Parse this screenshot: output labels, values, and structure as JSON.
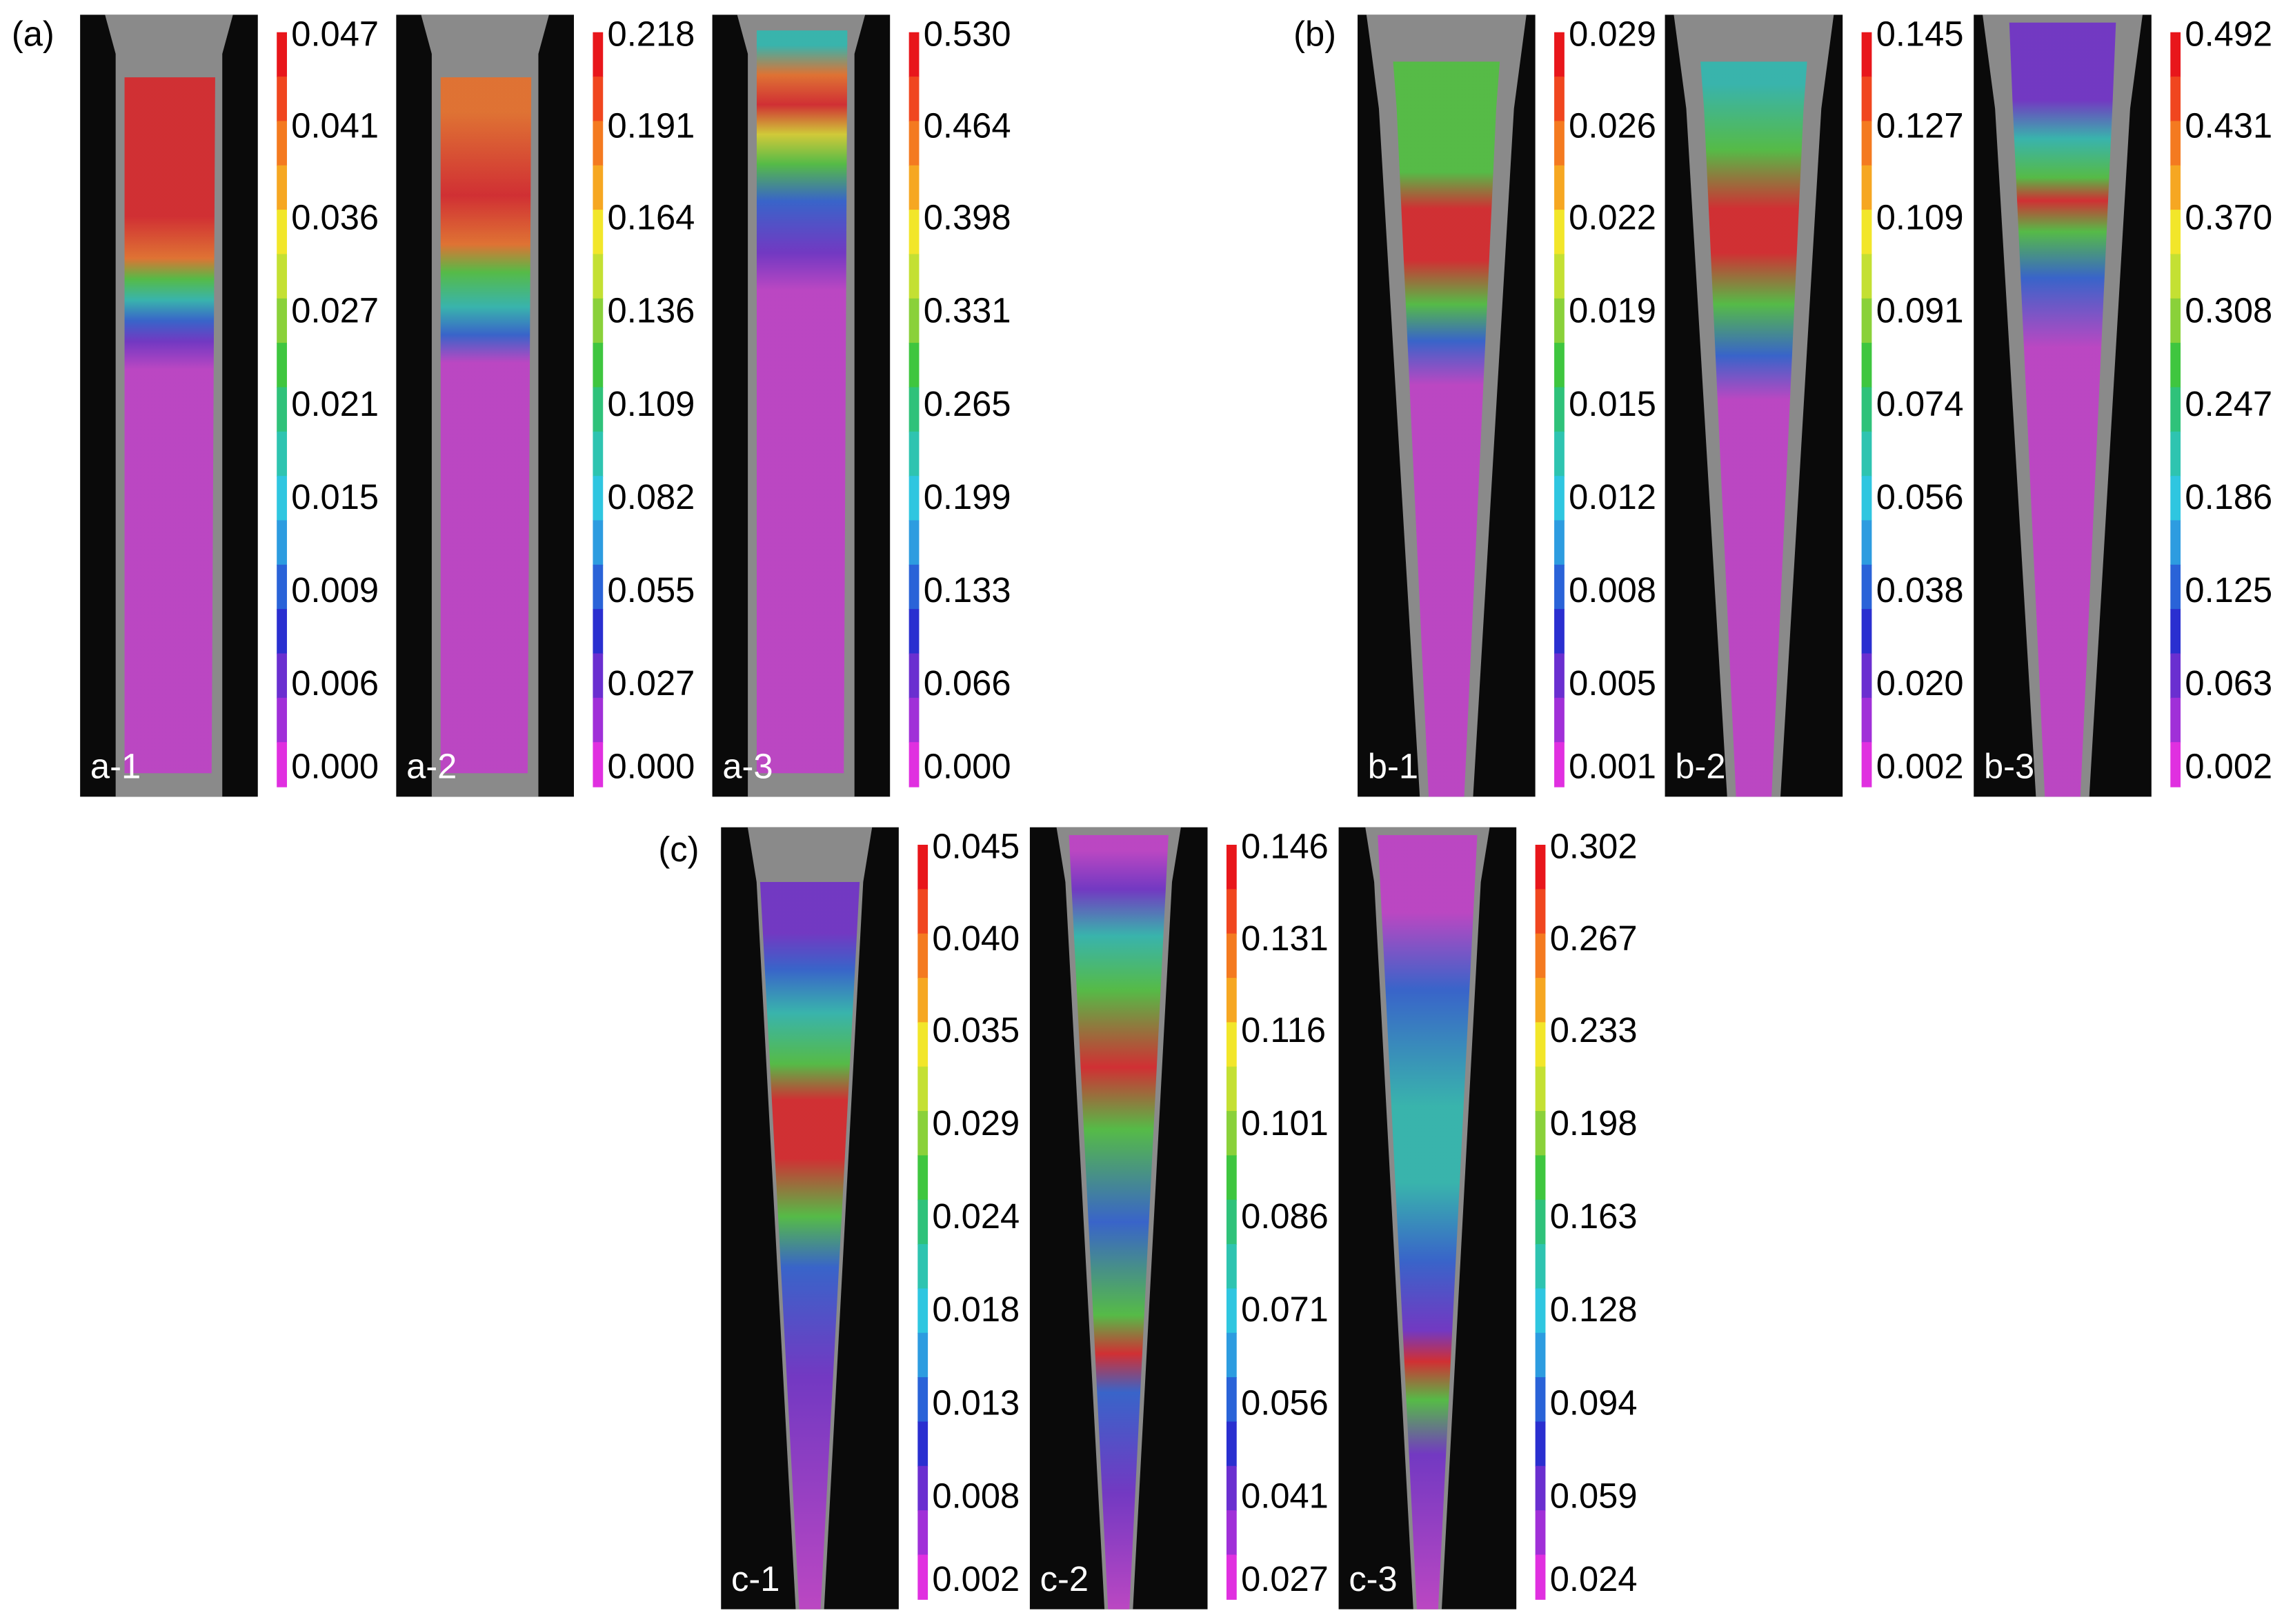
{
  "panels": [
    {
      "label": "(a)",
      "subpanels": [
        {
          "label": "a-1",
          "colorbar": [
            "0.047",
            "0.041",
            "0.036",
            "0.027",
            "0.021",
            "0.015",
            "0.009",
            "0.006",
            "0.000"
          ]
        },
        {
          "label": "a-2",
          "colorbar": [
            "0.218",
            "0.191",
            "0.164",
            "0.136",
            "0.109",
            "0.082",
            "0.055",
            "0.027",
            "0.000"
          ]
        },
        {
          "label": "a-3",
          "colorbar": [
            "0.530",
            "0.464",
            "0.398",
            "0.331",
            "0.265",
            "0.199",
            "0.133",
            "0.066",
            "0.000"
          ]
        }
      ]
    },
    {
      "label": "(b)",
      "subpanels": [
        {
          "label": "b-1",
          "colorbar": [
            "0.029",
            "0.026",
            "0.022",
            "0.019",
            "0.015",
            "0.012",
            "0.008",
            "0.005",
            "0.001"
          ]
        },
        {
          "label": "b-2",
          "colorbar": [
            "0.145",
            "0.127",
            "0.109",
            "0.091",
            "0.074",
            "0.056",
            "0.038",
            "0.020",
            "0.002"
          ]
        },
        {
          "label": "b-3",
          "colorbar": [
            "0.492",
            "0.431",
            "0.370",
            "0.308",
            "0.247",
            "0.186",
            "0.125",
            "0.063",
            "0.002"
          ]
        }
      ]
    },
    {
      "label": "(c)",
      "subpanels": [
        {
          "label": "c-1",
          "colorbar": [
            "0.045",
            "0.040",
            "0.035",
            "0.029",
            "0.024",
            "0.018",
            "0.013",
            "0.008",
            "0.002"
          ]
        },
        {
          "label": "c-2",
          "colorbar": [
            "0.146",
            "0.131",
            "0.116",
            "0.101",
            "0.086",
            "0.071",
            "0.056",
            "0.041",
            "0.027"
          ]
        },
        {
          "label": "c-3",
          "colorbar": [
            "0.302",
            "0.267",
            "0.233",
            "0.198",
            "0.163",
            "0.128",
            "0.094",
            "0.059",
            "0.024"
          ]
        }
      ]
    }
  ]
}
